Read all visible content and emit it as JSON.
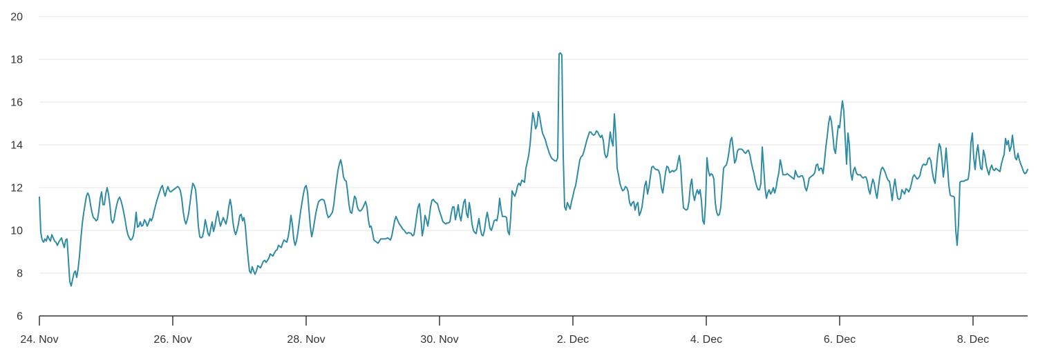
{
  "chart_data": {
    "type": "line",
    "title": "",
    "xlabel": "",
    "ylabel": "",
    "legend": "none",
    "grid": "horizontal-only",
    "line_color": "#2f8ba3",
    "axis_color": "#333333",
    "gridline_color": "#e6e6e6",
    "text_color": "#333333",
    "y_axis": {
      "min": 6,
      "max": 20,
      "ticks": [
        20,
        18,
        16,
        14,
        12,
        10,
        8,
        6
      ]
    },
    "x_axis": {
      "labels": [
        "24. Nov",
        "26. Nov",
        "28. Nov",
        "30. Nov",
        "2. Dec",
        "4. Dec",
        "6. Dec",
        "8. Dec"
      ],
      "label_interval_days": 2
    },
    "sampling": {
      "start": "24. Nov 00:00",
      "step_hours": 0.5,
      "end": "8. Dec ~21:00"
    },
    "values": [
      11.55,
      9.9,
      9.55,
      9.45,
      9.6,
      9.5,
      9.75,
      9.6,
      9.5,
      9.8,
      9.65,
      9.5,
      9.45,
      9.3,
      9.45,
      9.55,
      9.65,
      9.4,
      9.2,
      9.55,
      9.6,
      8.6,
      7.6,
      7.4,
      7.7,
      8.0,
      8.1,
      7.8,
      8.2,
      8.8,
      9.6,
      10.3,
      10.8,
      11.2,
      11.6,
      11.75,
      11.6,
      11.2,
      10.85,
      10.6,
      10.55,
      10.45,
      10.5,
      10.9,
      11.5,
      11.8,
      11.2,
      11.2,
      11.7,
      12.0,
      11.7,
      11.2,
      10.5,
      10.35,
      10.5,
      10.9,
      11.2,
      11.45,
      11.55,
      11.4,
      11.15,
      10.85,
      10.5,
      10.1,
      9.8,
      9.65,
      9.55,
      9.6,
      9.75,
      10.2,
      10.85,
      10.15,
      10.2,
      10.4,
      10.2,
      10.25,
      10.5,
      10.4,
      10.2,
      10.35,
      10.55,
      10.45,
      10.6,
      10.9,
      11.15,
      11.4,
      11.6,
      11.8,
      12.0,
      12.1,
      11.8,
      11.6,
      11.85,
      12.05,
      11.85,
      11.8,
      11.85,
      11.9,
      11.95,
      12.0,
      12.05,
      12.0,
      11.85,
      11.5,
      10.9,
      10.5,
      10.3,
      10.5,
      10.8,
      11.3,
      11.8,
      12.2,
      12.1,
      11.9,
      11.2,
      10.2,
      9.7,
      9.65,
      9.7,
      10.0,
      10.5,
      10.2,
      9.85,
      9.75,
      10.1,
      10.4,
      9.95,
      10.2,
      10.6,
      10.9,
      10.5,
      10.2,
      10.4,
      10.6,
      10.45,
      10.3,
      10.6,
      11.1,
      11.45,
      11.1,
      10.4,
      10.0,
      9.8,
      10.0,
      10.3,
      10.7,
      10.75,
      10.45,
      10.6,
      10.2,
      9.4,
      8.7,
      8.1,
      8.0,
      8.3,
      8.1,
      7.95,
      8.1,
      8.35,
      8.3,
      8.25,
      8.4,
      8.55,
      8.6,
      8.5,
      8.6,
      8.7,
      8.9,
      8.85,
      8.8,
      8.95,
      9.05,
      9.1,
      9.3,
      9.25,
      9.2,
      9.4,
      9.55,
      9.5,
      9.45,
      9.7,
      10.1,
      10.7,
      10.3,
      9.6,
      9.3,
      9.5,
      9.9,
      10.4,
      10.9,
      11.3,
      11.7,
      12.0,
      12.1,
      11.8,
      11.0,
      10.2,
      9.7,
      10.0,
      10.4,
      10.8,
      11.1,
      11.35,
      11.4,
      11.45,
      11.45,
      11.4,
      11.15,
      10.8,
      10.6,
      10.65,
      10.75,
      10.85,
      11.2,
      11.8,
      12.3,
      12.8,
      13.1,
      13.3,
      13.0,
      12.5,
      12.35,
      12.3,
      11.8,
      11.2,
      10.85,
      10.8,
      11.2,
      11.6,
      11.5,
      11.1,
      10.95,
      10.9,
      10.95,
      11.05,
      11.2,
      11.35,
      11.1,
      10.5,
      10.15,
      10.2,
      9.9,
      9.55,
      9.5,
      9.45,
      9.4,
      9.5,
      9.6,
      9.6,
      9.6,
      9.6,
      9.62,
      9.65,
      9.6,
      9.55,
      9.75,
      10.1,
      10.45,
      10.65,
      10.5,
      10.35,
      10.25,
      10.15,
      10.05,
      10.0,
      9.9,
      9.85,
      9.9,
      9.88,
      9.85,
      9.75,
      9.8,
      10.2,
      10.7,
      11.1,
      11.25,
      10.6,
      9.75,
      10.1,
      10.7,
      10.5,
      10.2,
      10.6,
      11.1,
      11.4,
      11.45,
      11.35,
      11.3,
      11.25,
      11.0,
      10.8,
      10.6,
      10.4,
      10.35,
      10.3,
      10.35,
      10.35,
      10.4,
      10.8,
      11.1,
      11.1,
      10.5,
      10.8,
      11.2,
      10.7,
      10.45,
      10.9,
      11.3,
      11.45,
      10.8,
      10.6,
      11.3,
      10.9,
      10.3,
      10.0,
      9.9,
      9.85,
      10.2,
      10.55,
      10.1,
      9.8,
      9.75,
      10.0,
      10.5,
      10.85,
      10.5,
      10.1,
      10.0,
      10.2,
      10.45,
      10.5,
      10.45,
      10.8,
      11.5,
      11.0,
      10.65,
      10.65,
      10.65,
      10.6,
      9.95,
      9.8,
      10.6,
      11.85,
      11.7,
      11.6,
      11.8,
      12.1,
      12.2,
      12.1,
      12.35,
      12.3,
      12.25,
      12.9,
      13.2,
      13.5,
      14.0,
      14.8,
      15.5,
      15.2,
      14.75,
      14.9,
      15.55,
      15.3,
      14.9,
      14.55,
      14.4,
      14.25,
      14.0,
      13.8,
      13.6,
      13.45,
      13.35,
      13.3,
      13.25,
      13.25,
      13.4,
      18.25,
      18.3,
      18.2,
      13.5,
      11.1,
      10.95,
      11.3,
      11.15,
      11.0,
      11.35,
      11.6,
      11.9,
      12.1,
      12.5,
      12.9,
      13.3,
      13.45,
      13.5,
      13.7,
      13.95,
      14.2,
      14.4,
      14.6,
      14.6,
      14.5,
      14.45,
      14.5,
      14.65,
      14.6,
      14.45,
      14.35,
      14.45,
      14.2,
      13.6,
      13.4,
      13.5,
      14.0,
      14.6,
      14.2,
      13.95,
      15.45,
      14.5,
      12.9,
      12.6,
      12.2,
      12.0,
      11.85,
      11.9,
      12.05,
      12.0,
      11.8,
      11.3,
      11.15,
      11.3,
      11.35,
      10.95,
      11.2,
      11.3,
      10.7,
      10.85,
      11.1,
      11.6,
      12.1,
      12.3,
      11.7,
      12.0,
      12.5,
      12.95,
      13.0,
      12.9,
      12.85,
      12.85,
      12.8,
      12.6,
      12.0,
      11.75,
      12.2,
      12.7,
      13.0,
      12.95,
      12.7,
      12.75,
      12.8,
      12.75,
      12.8,
      12.85,
      13.2,
      13.5,
      13.0,
      11.9,
      11.05,
      11.0,
      10.95,
      11.0,
      11.35,
      12.1,
      12.4,
      11.7,
      11.4,
      11.7,
      11.9,
      11.7,
      11.9,
      11.4,
      10.45,
      10.3,
      11.3,
      13.4,
      12.8,
      12.55,
      12.65,
      12.6,
      12.4,
      11.3,
      10.85,
      10.7,
      10.75,
      11.1,
      12.0,
      12.9,
      13.0,
      13.05,
      13.3,
      13.7,
      14.2,
      14.35,
      13.8,
      13.15,
      13.3,
      13.7,
      13.8,
      13.8,
      13.8,
      13.75,
      13.65,
      13.6,
      13.7,
      13.75,
      13.55,
      13.2,
      12.9,
      12.65,
      12.3,
      12.05,
      11.9,
      11.9,
      12.2,
      13.9,
      13.0,
      12.0,
      11.5,
      11.75,
      11.9,
      11.7,
      11.8,
      12.0,
      11.75,
      12.0,
      12.4,
      12.7,
      13.3,
      13.0,
      12.6,
      12.6,
      12.6,
      12.65,
      12.6,
      12.55,
      12.5,
      12.45,
      12.4,
      12.8,
      12.6,
      12.5,
      12.5,
      12.55,
      12.55,
      12.4,
      12.0,
      11.85,
      12.1,
      12.45,
      12.5,
      12.55,
      12.6,
      12.7,
      13.05,
      13.1,
      12.8,
      12.9,
      12.9,
      12.65,
      13.2,
      13.9,
      14.4,
      15.0,
      15.35,
      15.1,
      14.5,
      13.8,
      13.6,
      14.3,
      14.9,
      14.8,
      15.5,
      16.05,
      15.6,
      14.3,
      13.1,
      14.55,
      14.0,
      12.7,
      12.35,
      12.8,
      12.95,
      12.7,
      12.6,
      12.6,
      12.6,
      12.5,
      12.45,
      12.5,
      12.5,
      12.3,
      11.9,
      11.7,
      12.1,
      12.4,
      12.2,
      11.8,
      11.5,
      12.0,
      12.5,
      12.85,
      12.95,
      12.85,
      12.7,
      12.5,
      12.35,
      12.3,
      11.9,
      11.4,
      12.0,
      12.4,
      11.9,
      11.5,
      11.45,
      11.5,
      11.9,
      11.8,
      11.7,
      11.95,
      11.9,
      11.8,
      11.95,
      12.2,
      12.5,
      12.6,
      12.5,
      12.4,
      12.45,
      12.55,
      12.85,
      13.05,
      13.1,
      13.05,
      13.1,
      13.35,
      13.4,
      13.25,
      12.75,
      12.4,
      12.2,
      12.9,
      13.6,
      14.05,
      13.9,
      13.3,
      12.5,
      13.0,
      13.85,
      13.0,
      12.1,
      11.65,
      11.6,
      11.6,
      11.55,
      10.0,
      9.3,
      10.3,
      12.25,
      12.3,
      12.3,
      12.3,
      12.35,
      12.35,
      12.4,
      12.9,
      14.1,
      14.55,
      13.4,
      12.85,
      13.6,
      14.0,
      13.4,
      12.9,
      12.85,
      13.75,
      13.5,
      13.05,
      12.8,
      12.6,
      12.9,
      13.05,
      12.85,
      12.8,
      12.9,
      12.85,
      12.8,
      12.75,
      13.1,
      13.35,
      13.55,
      14.3,
      14.0,
      14.2,
      13.7,
      13.9,
      14.45,
      13.9,
      13.4,
      13.3,
      13.6,
      13.3,
      13.1,
      12.95,
      12.75,
      12.65,
      12.7,
      12.85
    ]
  }
}
